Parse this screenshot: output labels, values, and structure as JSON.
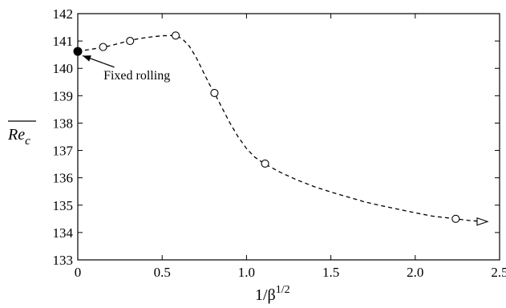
{
  "chart_data": {
    "type": "line",
    "xlabel": "1/β",
    "xlabel_superscript": "1/2",
    "ylabel": "Re",
    "ylabel_subscript": "c",
    "xlim": [
      0,
      2.5
    ],
    "ylim": [
      133,
      142
    ],
    "xticks": [
      "0",
      "0.5",
      "1.0",
      "1.5",
      "2.0",
      "2.5"
    ],
    "yticks": [
      "133",
      "134",
      "135",
      "136",
      "137",
      "138",
      "139",
      "140",
      "141",
      "142"
    ],
    "grid": false,
    "series": [
      {
        "style": "dashed",
        "x": [
          0,
          0.05,
          0.1,
          0.15,
          0.2,
          0.25,
          0.3,
          0.35,
          0.4,
          0.45,
          0.5,
          0.55,
          0.58,
          0.62,
          0.66,
          0.7,
          0.74,
          0.78,
          0.81,
          0.85,
          0.9,
          0.95,
          1.0,
          1.05,
          1.11,
          1.2,
          1.3,
          1.4,
          1.5,
          1.6,
          1.7,
          1.8,
          1.9,
          2.0,
          2.1,
          2.24,
          2.32,
          2.4
        ],
        "y": [
          140.62,
          140.67,
          140.72,
          140.77,
          140.84,
          140.92,
          141.0,
          141.07,
          141.12,
          141.16,
          141.19,
          141.2,
          141.2,
          141.08,
          140.82,
          140.42,
          139.92,
          139.42,
          139.1,
          138.62,
          138.02,
          137.5,
          137.07,
          136.75,
          136.5,
          136.2,
          135.92,
          135.68,
          135.48,
          135.3,
          135.12,
          134.98,
          134.85,
          134.72,
          134.6,
          134.5,
          134.44,
          134.4
        ]
      }
    ],
    "markers": [
      {
        "x": 0,
        "y": 140.62,
        "shape": "filled-circle"
      },
      {
        "x": 0.15,
        "y": 140.78,
        "shape": "open-circle"
      },
      {
        "x": 0.31,
        "y": 141.0,
        "shape": "open-circle"
      },
      {
        "x": 0.58,
        "y": 141.2,
        "shape": "open-circle"
      },
      {
        "x": 0.81,
        "y": 139.1,
        "shape": "open-circle"
      },
      {
        "x": 1.11,
        "y": 136.52,
        "shape": "open-circle"
      },
      {
        "x": 2.24,
        "y": 134.5,
        "shape": "open-circle"
      },
      {
        "x": 2.4,
        "y": 134.4,
        "shape": "open-triangle-right"
      }
    ],
    "annotations": [
      {
        "text": "Fixed rolling",
        "x": 0.35,
        "y": 139.75,
        "arrow_to": {
          "x": 0.01,
          "y": 140.58
        }
      }
    ]
  }
}
